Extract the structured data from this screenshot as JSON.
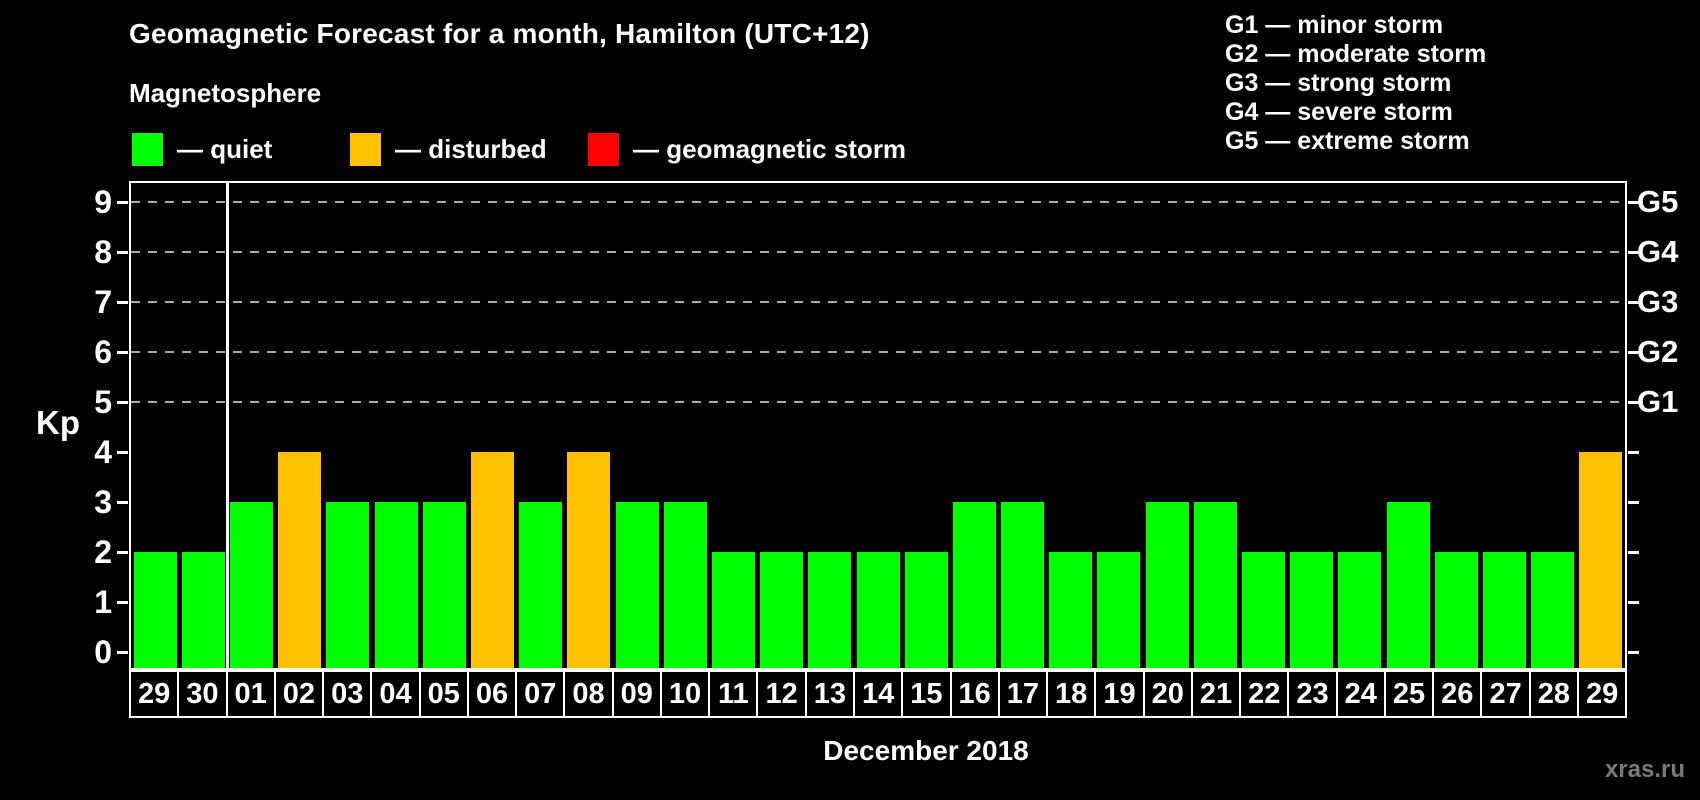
{
  "header": {
    "title": "Geomagnetic Forecast for a month, Hamilton (UTC+12)",
    "subtitle": "Magnetosphere"
  },
  "legend": {
    "items": [
      {
        "status": "quiet",
        "label": "— quiet",
        "color": "#00ff00"
      },
      {
        "status": "disturbed",
        "label": "— disturbed",
        "color": "#ffc000"
      },
      {
        "status": "storm",
        "label": "— geomagnetic storm",
        "color": "#ff0000"
      }
    ]
  },
  "g_legend": {
    "items": [
      "G1 — minor storm",
      "G2 — moderate storm",
      "G3 — strong storm",
      "G4 — severe storm",
      "G5 — extreme storm"
    ]
  },
  "chart_data": {
    "type": "bar",
    "title": "Geomagnetic Forecast for a month, Hamilton (UTC+12)",
    "subtitle": "Magnetosphere",
    "xlabel": "December 2018",
    "ylabel": "Kp",
    "ylim": [
      0,
      9
    ],
    "yticks": [
      0,
      1,
      2,
      3,
      4,
      5,
      6,
      7,
      8,
      9
    ],
    "grid_levels": [
      5,
      6,
      7,
      8,
      9
    ],
    "grid_on": true,
    "legend_position": "top-left",
    "right_axis_labels": [
      {
        "label": "G1",
        "kp": 5
      },
      {
        "label": "G2",
        "kp": 6
      },
      {
        "label": "G3",
        "kp": 7
      },
      {
        "label": "G4",
        "kp": 8
      },
      {
        "label": "G5",
        "kp": 9
      }
    ],
    "categories": [
      "29",
      "30",
      "01",
      "02",
      "03",
      "04",
      "05",
      "06",
      "07",
      "08",
      "09",
      "10",
      "11",
      "12",
      "13",
      "14",
      "15",
      "16",
      "17",
      "18",
      "19",
      "20",
      "21",
      "22",
      "23",
      "24",
      "25",
      "26",
      "27",
      "28",
      "29"
    ],
    "values": [
      2,
      2,
      3,
      4,
      3,
      3,
      3,
      4,
      3,
      4,
      3,
      3,
      2,
      2,
      2,
      2,
      2,
      3,
      3,
      2,
      2,
      3,
      3,
      2,
      2,
      2,
      3,
      2,
      2,
      2,
      4
    ],
    "statuses": [
      "quiet",
      "quiet",
      "quiet",
      "disturbed",
      "quiet",
      "quiet",
      "quiet",
      "disturbed",
      "quiet",
      "disturbed",
      "quiet",
      "quiet",
      "quiet",
      "quiet",
      "quiet",
      "quiet",
      "quiet",
      "quiet",
      "quiet",
      "quiet",
      "quiet",
      "quiet",
      "quiet",
      "quiet",
      "quiet",
      "quiet",
      "quiet",
      "quiet",
      "quiet",
      "quiet",
      "disturbed"
    ],
    "colors": {
      "quiet": "#00ff00",
      "disturbed": "#ffc000",
      "storm": "#ff0000"
    },
    "month_separator_after_index": 1
  },
  "footer": {
    "watermark": "xras.ru"
  }
}
